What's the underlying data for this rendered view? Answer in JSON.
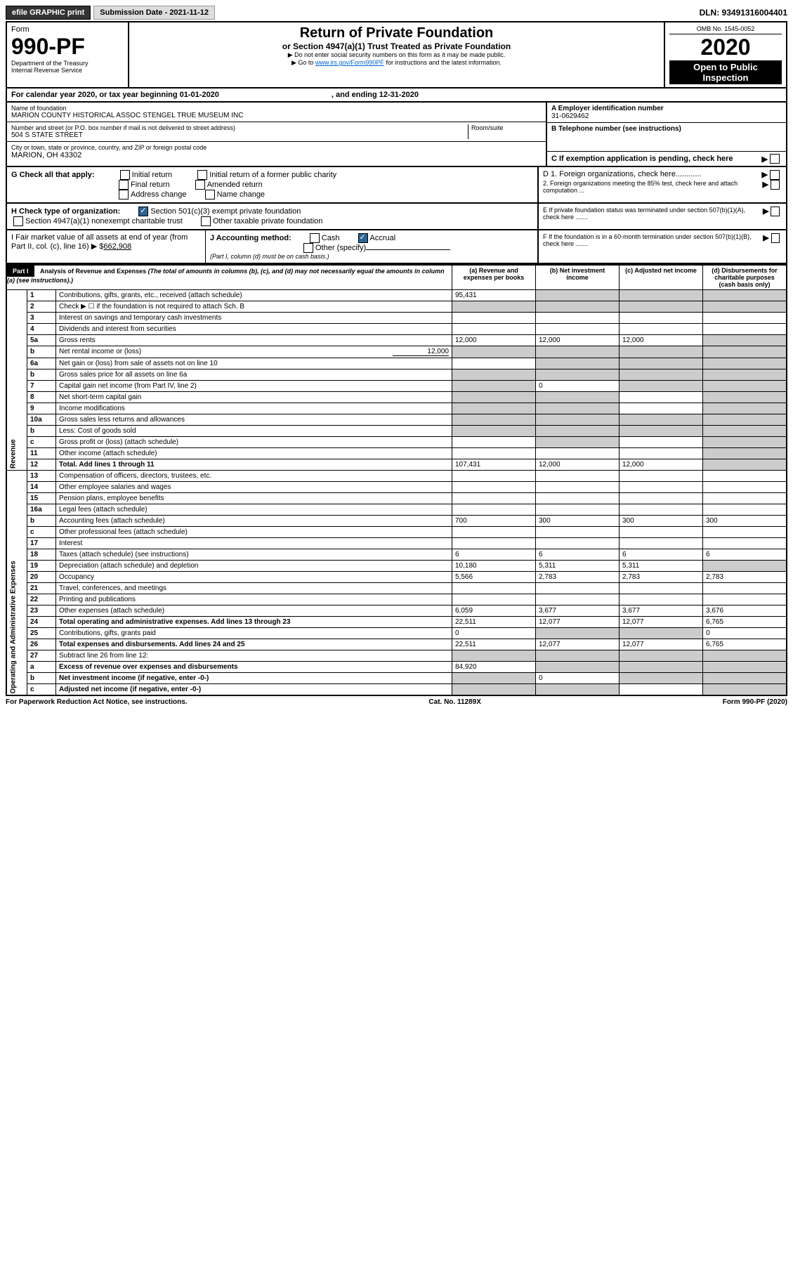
{
  "topbar": {
    "efile": "efile GRAPHIC print",
    "submission": "Submission Date - 2021-11-12",
    "dln": "DLN: 93491316004401"
  },
  "header": {
    "form_label": "Form",
    "form_num": "990-PF",
    "dept": "Department of the Treasury",
    "irs": "Internal Revenue Service",
    "title": "Return of Private Foundation",
    "subtitle": "or Section 4947(a)(1) Trust Treated as Private Foundation",
    "note1": "▶ Do not enter social security numbers on this form as it may be made public.",
    "note2": "▶ Go to ",
    "link": "www.irs.gov/Form990PF",
    "note3": " for instructions and the latest information.",
    "omb": "OMB No. 1545-0052",
    "year": "2020",
    "inspect": "Open to Public Inspection"
  },
  "calendar": {
    "text": "For calendar year 2020, or tax year beginning 01-01-2020",
    "ending": ", and ending 12-31-2020"
  },
  "info": {
    "name_label": "Name of foundation",
    "name": "MARION COUNTY HISTORICAL ASSOC STENGEL TRUE MUSEUM INC",
    "ein_label": "A Employer identification number",
    "ein": "31-0629462",
    "addr_label": "Number and street (or P.O. box number if mail is not delivered to street address)",
    "room_label": "Room/suite",
    "addr": "504 S STATE STREET",
    "phone_label": "B Telephone number (see instructions)",
    "city_label": "City or town, state or province, country, and ZIP or foreign postal code",
    "city": "MARION, OH  43302",
    "c": "C If exemption application is pending, check here",
    "g_label": "G Check all that apply:",
    "g1": "Initial return",
    "g2": "Initial return of a former public charity",
    "g3": "Final return",
    "g4": "Amended return",
    "g5": "Address change",
    "g6": "Name change",
    "d1": "D 1. Foreign organizations, check here............",
    "d2": "2. Foreign organizations meeting the 85% test, check here and attach computation ...",
    "h_label": "H Check type of organization:",
    "h1": "Section 501(c)(3) exempt private foundation",
    "h2": "Section 4947(a)(1) nonexempt charitable trust",
    "h3": "Other taxable private foundation",
    "e": "E If private foundation status was terminated under section 507(b)(1)(A), check here .......",
    "i_label": "I Fair market value of all assets at end of year (from Part II, col. (c), line 16) ▶ $",
    "i_val": "662,908",
    "j_label": "J Accounting method:",
    "j1": "Cash",
    "j2": "Accrual",
    "j3": "Other (specify)",
    "j_note": "(Part I, column (d) must be on cash basis.)",
    "f": "F If the foundation is in a 60-month termination under section 507(b)(1)(B), check here ......."
  },
  "part1": {
    "label": "Part I",
    "title": "Analysis of Revenue and Expenses",
    "title_note": "(The total of amounts in columns (b), (c), and (d) may not necessarily equal the amounts in column (a) (see instructions).)",
    "col_a": "(a) Revenue and expenses per books",
    "col_b": "(b) Net investment income",
    "col_c": "(c) Adjusted net income",
    "col_d": "(d) Disbursements for charitable purposes (cash basis only)",
    "revenue_label": "Revenue",
    "expenses_label": "Operating and Administrative Expenses"
  },
  "rows": [
    {
      "n": "1",
      "t": "Contributions, gifts, grants, etc., received (attach schedule)",
      "a": "95,431",
      "shade": [
        "b",
        "c",
        "d"
      ]
    },
    {
      "n": "2",
      "t": "Check ▶ ☐ if the foundation is not required to attach Sch. B",
      "dots": 1,
      "shade": [
        "a",
        "b",
        "c",
        "d"
      ]
    },
    {
      "n": "3",
      "t": "Interest on savings and temporary cash investments"
    },
    {
      "n": "4",
      "t": "Dividends and interest from securities",
      "dots": 1
    },
    {
      "n": "5a",
      "t": "Gross rents",
      "dots": 1,
      "a": "12,000",
      "b": "12,000",
      "c": "12,000",
      "shade": [
        "d"
      ]
    },
    {
      "n": "b",
      "t": "Net rental income or (loss)",
      "extra": "12,000",
      "shade": [
        "a",
        "b",
        "c",
        "d"
      ]
    },
    {
      "n": "6a",
      "t": "Net gain or (loss) from sale of assets not on line 10",
      "shade": [
        "b",
        "c",
        "d"
      ]
    },
    {
      "n": "b",
      "t": "Gross sales price for all assets on line 6a",
      "under": 1,
      "shade": [
        "a",
        "b",
        "c",
        "d"
      ]
    },
    {
      "n": "7",
      "t": "Capital gain net income (from Part IV, line 2)",
      "dots": 1,
      "b": "0",
      "shade": [
        "a",
        "c",
        "d"
      ]
    },
    {
      "n": "8",
      "t": "Net short-term capital gain",
      "dots": 1,
      "shade": [
        "a",
        "b",
        "d"
      ]
    },
    {
      "n": "9",
      "t": "Income modifications",
      "dots": 1,
      "shade": [
        "a",
        "b",
        "d"
      ]
    },
    {
      "n": "10a",
      "t": "Gross sales less returns and allowances",
      "shade": [
        "a",
        "b",
        "c",
        "d"
      ]
    },
    {
      "n": "b",
      "t": "Less: Cost of goods sold",
      "dots": 1,
      "shade": [
        "a",
        "b",
        "c",
        "d"
      ]
    },
    {
      "n": "c",
      "t": "Gross profit or (loss) (attach schedule)",
      "dots": 1,
      "shade": [
        "b",
        "d"
      ]
    },
    {
      "n": "11",
      "t": "Other income (attach schedule)",
      "dots": 1,
      "shade": [
        "d"
      ]
    },
    {
      "n": "12",
      "t": "Total. Add lines 1 through 11",
      "dots": 1,
      "bold": 1,
      "a": "107,431",
      "b": "12,000",
      "c": "12,000",
      "shade": [
        "d"
      ]
    },
    {
      "n": "13",
      "t": "Compensation of officers, directors, trustees, etc."
    },
    {
      "n": "14",
      "t": "Other employee salaries and wages",
      "dots": 1
    },
    {
      "n": "15",
      "t": "Pension plans, employee benefits",
      "dots": 1
    },
    {
      "n": "16a",
      "t": "Legal fees (attach schedule)",
      "dots": 1
    },
    {
      "n": "b",
      "t": "Accounting fees (attach schedule)",
      "dots": 1,
      "a": "700",
      "b": "300",
      "c": "300",
      "d": "300"
    },
    {
      "n": "c",
      "t": "Other professional fees (attach schedule)",
      "dots": 1
    },
    {
      "n": "17",
      "t": "Interest",
      "dots": 1
    },
    {
      "n": "18",
      "t": "Taxes (attach schedule) (see instructions)",
      "dots": 1,
      "a": "6",
      "b": "6",
      "c": "6",
      "d": "6"
    },
    {
      "n": "19",
      "t": "Depreciation (attach schedule) and depletion",
      "dots": 1,
      "a": "10,180",
      "b": "5,311",
      "c": "5,311",
      "shade": [
        "d"
      ]
    },
    {
      "n": "20",
      "t": "Occupancy",
      "dots": 1,
      "a": "5,566",
      "b": "2,783",
      "c": "2,783",
      "d": "2,783"
    },
    {
      "n": "21",
      "t": "Travel, conferences, and meetings",
      "dots": 1
    },
    {
      "n": "22",
      "t": "Printing and publications",
      "dots": 1
    },
    {
      "n": "23",
      "t": "Other expenses (attach schedule)",
      "dots": 1,
      "a": "6,059",
      "b": "3,677",
      "c": "3,677",
      "d": "3,676"
    },
    {
      "n": "24",
      "t": "Total operating and administrative expenses. Add lines 13 through 23",
      "dots": 1,
      "bold": 1,
      "a": "22,511",
      "b": "12,077",
      "c": "12,077",
      "d": "6,765"
    },
    {
      "n": "25",
      "t": "Contributions, gifts, grants paid",
      "dots": 1,
      "a": "0",
      "shade": [
        "b",
        "c"
      ],
      "d": "0"
    },
    {
      "n": "26",
      "t": "Total expenses and disbursements. Add lines 24 and 25",
      "bold": 1,
      "a": "22,511",
      "b": "12,077",
      "c": "12,077",
      "d": "6,765"
    },
    {
      "n": "27",
      "t": "Subtract line 26 from line 12:",
      "shade": [
        "a",
        "b",
        "c",
        "d"
      ]
    },
    {
      "n": "a",
      "t": "Excess of revenue over expenses and disbursements",
      "bold": 1,
      "a": "84,920",
      "shade": [
        "b",
        "c",
        "d"
      ]
    },
    {
      "n": "b",
      "t": "Net investment income (if negative, enter -0-)",
      "bold": 1,
      "b": "0",
      "shade": [
        "a",
        "c",
        "d"
      ]
    },
    {
      "n": "c",
      "t": "Adjusted net income (if negative, enter -0-)",
      "dots": 1,
      "bold": 1,
      "shade": [
        "a",
        "b",
        "d"
      ]
    }
  ],
  "footer": {
    "left": "For Paperwork Reduction Act Notice, see instructions.",
    "mid": "Cat. No. 11289X",
    "right": "Form 990-PF (2020)"
  }
}
